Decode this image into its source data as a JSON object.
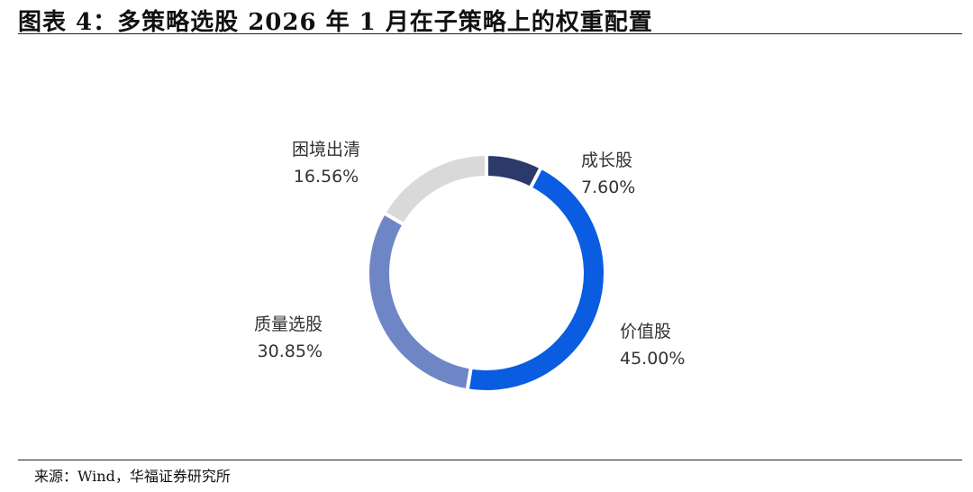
{
  "title": "图表 4：多策略选股 2026 年 1 月在子策略上的权重配置",
  "source": "来源：Wind，华福证券研究所",
  "chart_data": {
    "type": "pie",
    "donut": true,
    "slices": [
      {
        "label": "成长股",
        "value": 7.6,
        "value_text": "7.60%",
        "color": "#2b3a6b"
      },
      {
        "label": "价值股",
        "value": 45.0,
        "value_text": "45.00%",
        "color": "#0a5ce0"
      },
      {
        "label": "质量选股",
        "value": 30.85,
        "value_text": "30.85%",
        "color": "#6f86c6"
      },
      {
        "label": "困境出清",
        "value": 16.56,
        "value_text": "16.56%",
        "color": "#d9d9d9"
      }
    ]
  }
}
